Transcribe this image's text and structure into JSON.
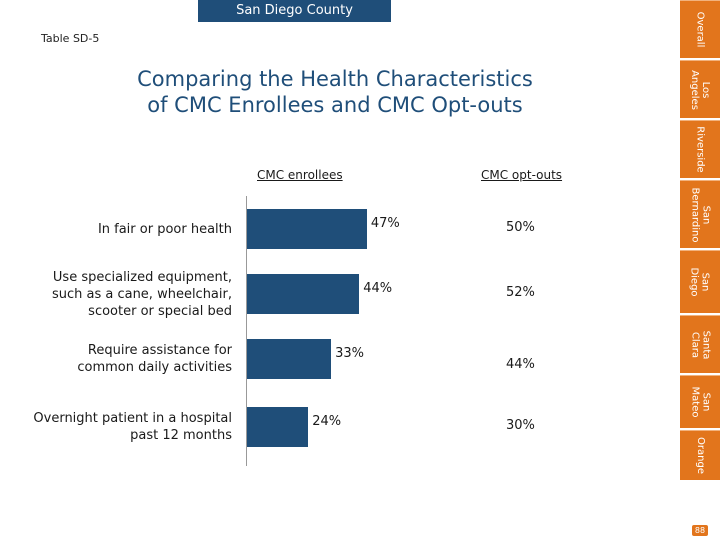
{
  "header": {
    "banner": "San Diego County",
    "table_label": "Table SD-5",
    "title_line1": "Comparing the Health Characteristics",
    "title_line2": "of CMC Enrollees and CMC Opt-outs"
  },
  "chart_data": {
    "type": "bar",
    "orientation": "horizontal",
    "title": "Comparing the Health Characteristics of CMC Enrollees and CMC Opt-outs",
    "column_headers": [
      "CMC enrollees",
      "CMC opt-outs"
    ],
    "categories": [
      "In fair or poor health",
      "Use specialized equipment, such as a cane, wheelchair, scooter or special bed",
      "Require assistance for common daily activities",
      "Overnight patient in a hospital past 12 months"
    ],
    "series": [
      {
        "name": "CMC enrollees",
        "values": [
          47,
          44,
          33,
          24
        ],
        "labels": [
          "47%",
          "44%",
          "33%",
          "24%"
        ],
        "color": "#1f4e79"
      },
      {
        "name": "CMC opt-outs",
        "values": [
          50,
          52,
          44,
          30
        ],
        "labels": [
          "50%",
          "52%",
          "44%",
          "30%"
        ]
      }
    ],
    "unit": "%",
    "xlim": [
      0,
      100
    ]
  },
  "sidebar": {
    "tabs": [
      "Overall",
      "Los\nAngeles",
      "Riverside",
      "San\nBernardino",
      "San\nDiego",
      "Santa\nClara",
      "San\nMateo",
      "Orange"
    ],
    "page_number": "88",
    "accent": "#e2751c"
  }
}
